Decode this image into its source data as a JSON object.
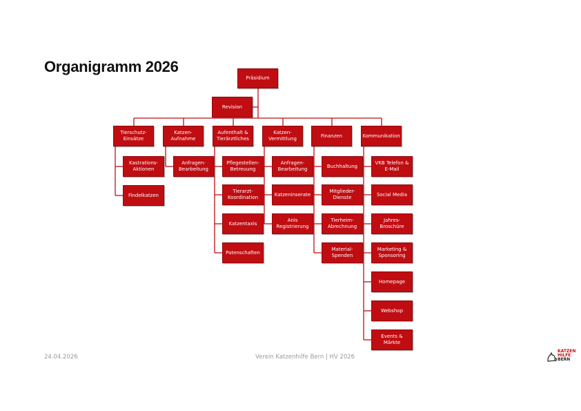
{
  "title": "Organigramm 2026",
  "colors": {
    "box": "#c00d12",
    "line": "#c00d12"
  },
  "top": {
    "president": "Präsidium",
    "revision": "Revision"
  },
  "departments": [
    "Tierschutz-\nEinsätze",
    "Katzen-\nAufnahme",
    "Aufenthalt &\nTierärztliches",
    "Katzen-\nVermittlung",
    "Finanzen",
    "Kommunikation"
  ],
  "subunits": {
    "tierschutz": [
      "Kastrations-\nAktionen",
      "Findelkatzen"
    ],
    "aufnahme": [
      "Anfragen-\nBearbeitung"
    ],
    "aufenthalt": [
      "Pflegestellen-\nBetreuung",
      "Tierarzt-\nKoordination",
      "Katzentaxis",
      "Patenschaften"
    ],
    "vermittlung": [
      "Anfragen-\nBearbeitung",
      "Katzeninserate",
      "Anis\nRegistrierung"
    ],
    "finanzen": [
      "Buchhaltung",
      "Mitglieder-\nDienste",
      "Tierheim-\nAbrechnung",
      "Material-\nSpenden"
    ],
    "kommunikation": [
      "VKB Telefon &\nE-Mail",
      "Social Media",
      "Jahres-\nBroschüre",
      "Marketing &\nSponsoring",
      "Homepage",
      "Webshop",
      "Events & Märkte"
    ]
  },
  "footer": {
    "date": "24.04.2026",
    "center": "Verein Katzenhilfe Bern | HV 2026"
  },
  "logo": {
    "line1": "KATZEN",
    "line2": "HILFE",
    "line3": "BERN",
    "icon": "cat-icon"
  }
}
